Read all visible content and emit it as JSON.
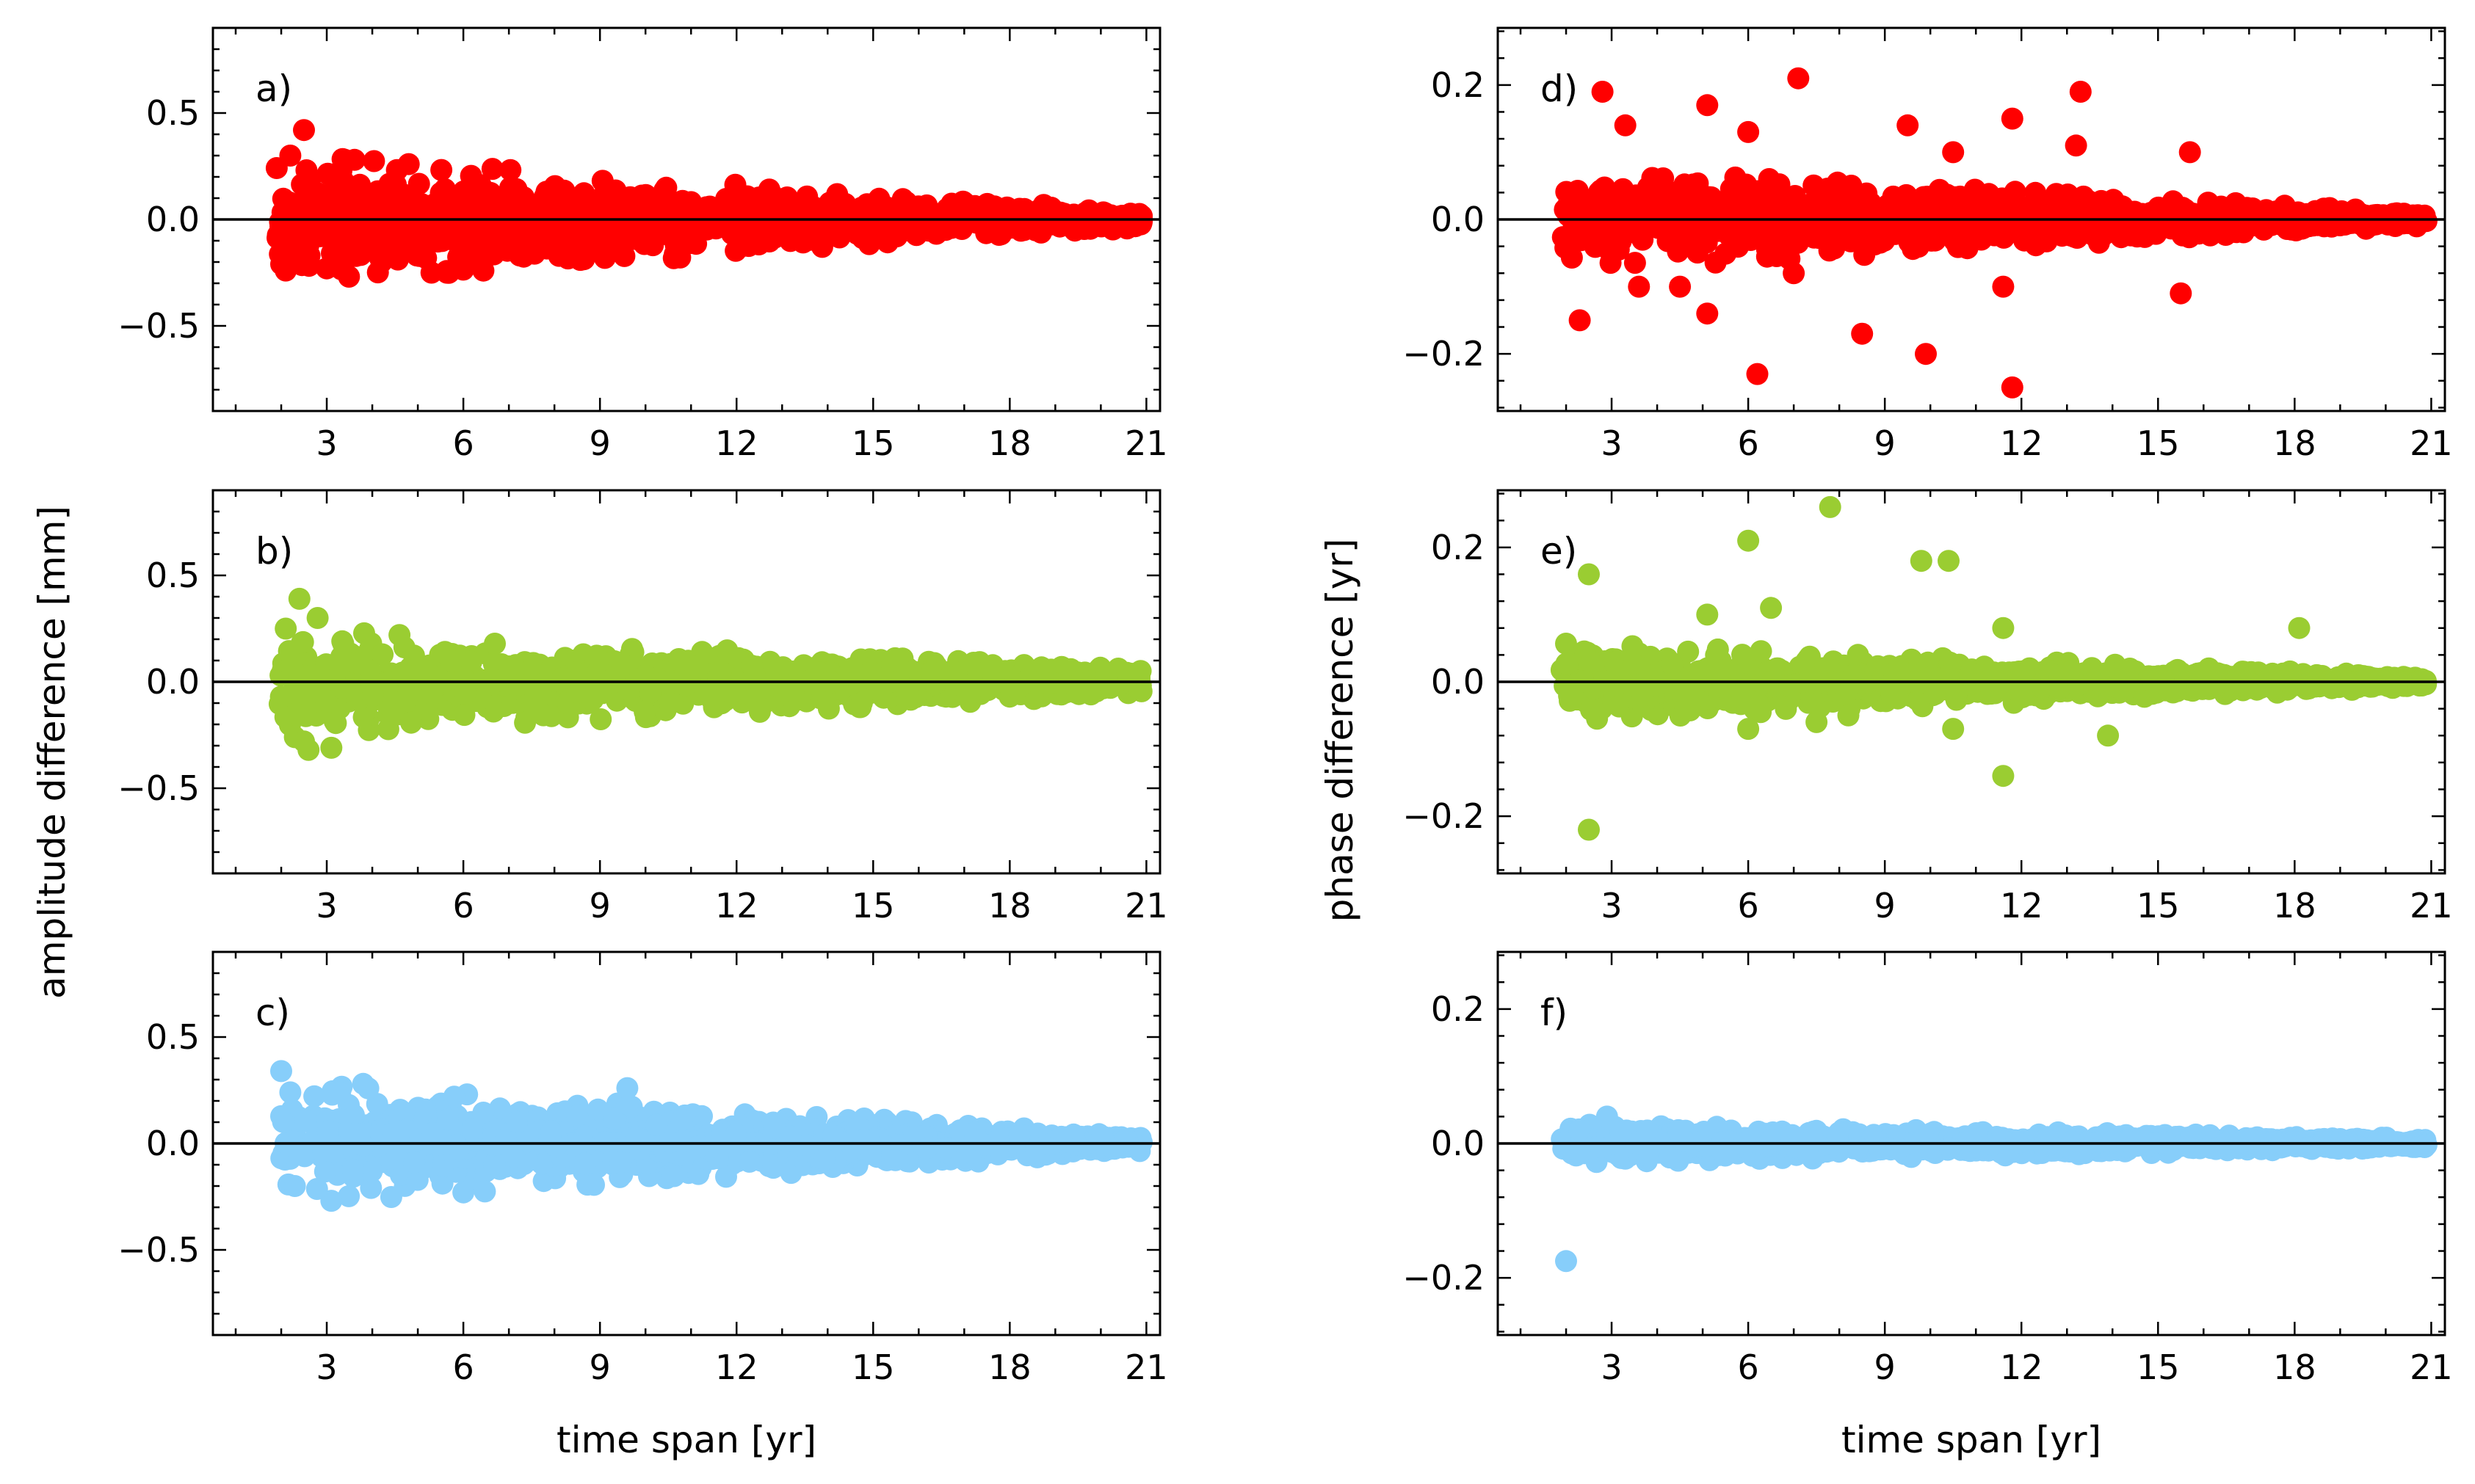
{
  "figure": {
    "left_ylabel": "amplitude difference [mm]",
    "right_ylabel": "phase difference [yr]"
  },
  "chart_data": [
    {
      "id": "a",
      "type": "scatter",
      "label": "a)",
      "color": "#ff0000",
      "xlabel": "",
      "ylabel": "amplitude difference [mm]",
      "xlim": [
        0.5,
        21.3
      ],
      "ylim": [
        -0.9,
        0.9
      ],
      "xticks": [
        3,
        6,
        9,
        12,
        15,
        18,
        21
      ],
      "yticks": [
        0.5,
        0.0,
        -0.5
      ],
      "ytick_labels": [
        "0.5",
        "0.0",
        "−0.5"
      ],
      "hline": 0,
      "x_start": 1.9,
      "x_end": 20.9,
      "spread_start": 0.16,
      "spread_end": 0.02,
      "outliers": [
        [
          2.5,
          0.42
        ],
        [
          2.2,
          0.3
        ],
        [
          2.0,
          -0.21
        ],
        [
          2.1,
          -0.24
        ],
        [
          3.0,
          -0.23
        ],
        [
          5.3,
          -0.25
        ],
        [
          4.2,
          -0.2
        ],
        [
          3.4,
          0.28
        ],
        [
          4.8,
          0.26
        ]
      ],
      "seed": 11
    },
    {
      "id": "b",
      "type": "scatter",
      "label": "b)",
      "color": "#9acd32",
      "xlabel": "",
      "ylabel": "amplitude difference [mm]",
      "xlim": [
        0.5,
        21.3
      ],
      "ylim": [
        -0.9,
        0.9
      ],
      "xticks": [
        3,
        6,
        9,
        12,
        15,
        18,
        21
      ],
      "yticks": [
        0.5,
        0.0,
        -0.5
      ],
      "ytick_labels": [
        "0.5",
        "0.0",
        "−0.5"
      ],
      "hline": 0,
      "x_start": 1.9,
      "x_end": 20.9,
      "spread_start": 0.13,
      "spread_end": 0.03,
      "outliers": [
        [
          2.4,
          0.39
        ],
        [
          2.1,
          0.25
        ],
        [
          2.8,
          0.3
        ],
        [
          2.3,
          -0.26
        ],
        [
          2.6,
          -0.32
        ],
        [
          3.1,
          -0.31
        ],
        [
          2.5,
          -0.28
        ]
      ],
      "seed": 23
    },
    {
      "id": "c",
      "type": "scatter",
      "label": "c)",
      "color": "#87cefa",
      "xlabel": "time span [yr]",
      "ylabel": "amplitude difference [mm]",
      "xlim": [
        0.5,
        21.3
      ],
      "ylim": [
        -0.9,
        0.9
      ],
      "xticks": [
        3,
        6,
        9,
        12,
        15,
        18,
        21
      ],
      "yticks": [
        0.5,
        0.0,
        -0.5
      ],
      "ytick_labels": [
        "0.5",
        "0.0",
        "−0.5"
      ],
      "hline": 0,
      "x_start": 1.9,
      "x_end": 20.9,
      "spread_start": 0.15,
      "spread_end": 0.02,
      "outliers": [
        [
          2.0,
          0.34
        ],
        [
          3.8,
          0.28
        ],
        [
          9.6,
          0.26
        ],
        [
          2.2,
          0.24
        ],
        [
          5.8,
          0.22
        ],
        [
          6.0,
          -0.23
        ],
        [
          2.3,
          -0.2
        ]
      ],
      "seed": 37
    },
    {
      "id": "d",
      "type": "scatter",
      "label": "d)",
      "color": "#ff0000",
      "xlabel": "",
      "ylabel": "phase difference [yr]",
      "xlim": [
        0.5,
        21.3
      ],
      "ylim": [
        -0.285,
        0.285
      ],
      "xticks": [
        3,
        6,
        9,
        12,
        15,
        18,
        21
      ],
      "yticks": [
        0.2,
        0.0,
        -0.2
      ],
      "ytick_labels": [
        "0.2",
        "0.0",
        "−0.2"
      ],
      "hline": 0,
      "x_start": 1.9,
      "x_end": 20.9,
      "spread_start": 0.04,
      "spread_end": 0.005,
      "outliers": [
        [
          2.8,
          0.19
        ],
        [
          3.3,
          0.14
        ],
        [
          5.1,
          0.17
        ],
        [
          6.0,
          0.13
        ],
        [
          7.1,
          0.21
        ],
        [
          9.5,
          0.14
        ],
        [
          10.5,
          0.1
        ],
        [
          11.8,
          0.15
        ],
        [
          13.3,
          0.19
        ],
        [
          13.2,
          0.11
        ],
        [
          15.7,
          0.1
        ],
        [
          2.3,
          -0.15
        ],
        [
          6.2,
          -0.23
        ],
        [
          8.5,
          -0.17
        ],
        [
          9.9,
          -0.2
        ],
        [
          11.8,
          -0.25
        ],
        [
          15.5,
          -0.11
        ],
        [
          5.1,
          -0.14
        ],
        [
          4.5,
          -0.1
        ],
        [
          3.6,
          -0.1
        ],
        [
          7.0,
          -0.08
        ],
        [
          11.6,
          -0.1
        ]
      ],
      "seed": 51
    },
    {
      "id": "e",
      "type": "scatter",
      "label": "e)",
      "color": "#9acd32",
      "xlabel": "",
      "ylabel": "phase difference [yr]",
      "xlim": [
        0.5,
        21.3
      ],
      "ylim": [
        -0.285,
        0.285
      ],
      "xticks": [
        3,
        6,
        9,
        12,
        15,
        18,
        21
      ],
      "yticks": [
        0.2,
        0.0,
        -0.2
      ],
      "ytick_labels": [
        "0.2",
        "0.0",
        "−0.2"
      ],
      "hline": 0,
      "x_start": 1.9,
      "x_end": 20.9,
      "spread_start": 0.03,
      "spread_end": 0.004,
      "outliers": [
        [
          2.5,
          0.16
        ],
        [
          6.0,
          0.21
        ],
        [
          7.8,
          0.26
        ],
        [
          9.8,
          0.18
        ],
        [
          10.4,
          0.18
        ],
        [
          5.1,
          0.1
        ],
        [
          6.5,
          0.11
        ],
        [
          11.6,
          0.08
        ],
        [
          18.1,
          0.08
        ],
        [
          2.5,
          -0.22
        ],
        [
          11.6,
          -0.14
        ],
        [
          13.9,
          -0.08
        ],
        [
          6.0,
          -0.07
        ],
        [
          7.5,
          -0.06
        ],
        [
          10.5,
          -0.07
        ],
        [
          8.2,
          -0.05
        ]
      ],
      "seed": 67
    },
    {
      "id": "f",
      "type": "scatter",
      "label": "f)",
      "color": "#87cefa",
      "xlabel": "time span [yr]",
      "ylabel": "phase difference [yr]",
      "xlim": [
        0.5,
        21.3
      ],
      "ylim": [
        -0.285,
        0.285
      ],
      "xticks": [
        3,
        6,
        9,
        12,
        15,
        18,
        21
      ],
      "yticks": [
        0.2,
        0.0,
        -0.2
      ],
      "ytick_labels": [
        "0.2",
        "0.0",
        "−0.2"
      ],
      "hline": 0,
      "x_start": 1.9,
      "x_end": 20.9,
      "spread_start": 0.015,
      "spread_end": 0.004,
      "outliers": [
        [
          2.0,
          -0.175
        ],
        [
          2.9,
          0.04
        ],
        [
          2.3,
          0.02
        ]
      ],
      "seed": 83
    }
  ]
}
